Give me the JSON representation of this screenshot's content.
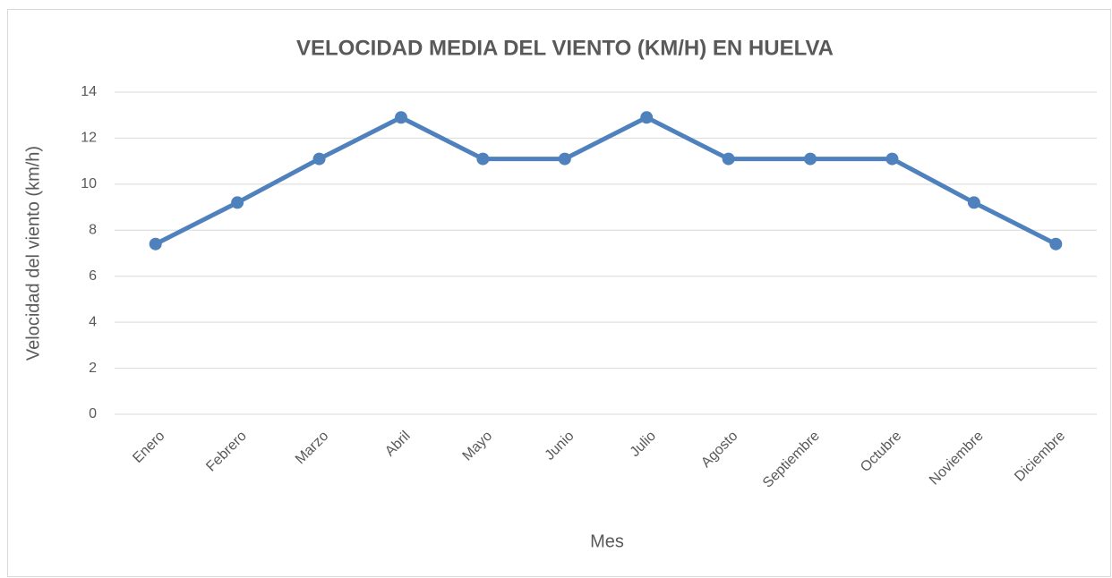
{
  "chart_data": {
    "type": "line",
    "title": "VELOCIDAD MEDIA DEL VIENTO (KM/H) EN HUELVA",
    "x_label": "Mes",
    "y_label": "Velocidad del viento (km/h)",
    "categories": [
      "Enero",
      "Febrero",
      "Marzo",
      "Abril",
      "Mayo",
      "Junio",
      "Julio",
      "Agosto",
      "Septiembre",
      "Octubre",
      "Noviembre",
      "Diciembre"
    ],
    "values": [
      7.4,
      9.2,
      11.1,
      12.9,
      11.1,
      11.1,
      12.9,
      11.1,
      11.1,
      11.1,
      9.2,
      7.4
    ],
    "color": "#4f81bd",
    "ylim": [
      0,
      14
    ],
    "yticks": [
      0,
      2,
      4,
      6,
      8,
      10,
      12,
      14
    ],
    "grid": true
  }
}
